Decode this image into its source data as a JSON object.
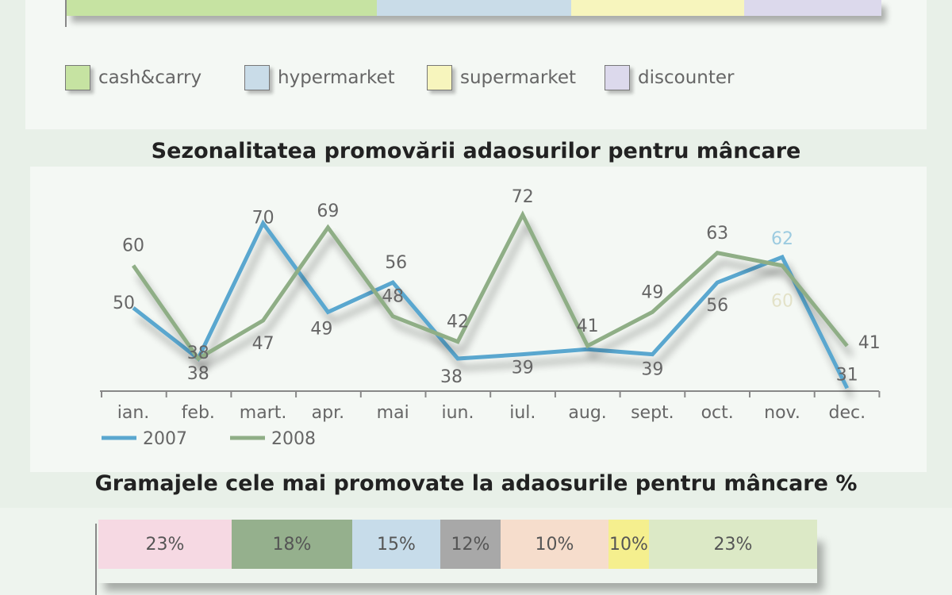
{
  "chart_data": [
    {
      "type": "bar",
      "legend": [
        {
          "name": "cash&carry",
          "color": "#c6e3a2"
        },
        {
          "name": "hypermarket",
          "color": "#c9dce8"
        },
        {
          "name": "supermarket",
          "color": "#f7f5bd"
        },
        {
          "name": "discounter",
          "color": "#dcd9ec"
        }
      ],
      "series": [
        {
          "name": "cash&carry",
          "values": [
            35
          ]
        },
        {
          "name": "hypermarket",
          "values": [
            22
          ]
        },
        {
          "name": "supermarket",
          "values": [
            19.5
          ]
        },
        {
          "name": "discounter",
          "values": [
            15.5
          ]
        }
      ]
    },
    {
      "type": "line",
      "title": "Sezonalitatea promovării adaosurilor pentru mâncare",
      "categories": [
        "ian.",
        "feb.",
        "mart.",
        "apr.",
        "mai",
        "iun.",
        "iul.",
        "aug.",
        "sept.",
        "oct.",
        "nov.",
        "dec."
      ],
      "series": [
        {
          "name": "2007",
          "color": "#5aa7cf",
          "values": [
            50,
            38,
            70,
            49,
            56,
            38,
            39,
            null,
            39,
            56,
            62,
            31
          ]
        },
        {
          "name": "2008",
          "color": "#8fae86",
          "values": [
            60,
            38,
            47,
            69,
            48,
            42,
            72,
            41,
            49,
            63,
            60,
            41
          ]
        }
      ],
      "legend_position": "bottom-left"
    },
    {
      "type": "bar",
      "title": "Gramajele cele mai promovate la adaosurile pentru mâncare %",
      "segments": [
        {
          "value": 23,
          "label": "23%",
          "color": "#f6d9e3"
        },
        {
          "value": 18,
          "label": "18%",
          "color": "#95b08d"
        },
        {
          "value": 15,
          "label": "15%",
          "color": "#c7dcea"
        },
        {
          "value": 12,
          "label": "12%",
          "color": "#a8a8a8"
        },
        {
          "value": 10,
          "label": "10%",
          "color": "#f6ddcc"
        },
        {
          "value": 10,
          "label": "10%",
          "color": "#f5ef8e"
        },
        {
          "value": 23,
          "label": "23%",
          "color": "#dce9c6"
        }
      ]
    }
  ]
}
